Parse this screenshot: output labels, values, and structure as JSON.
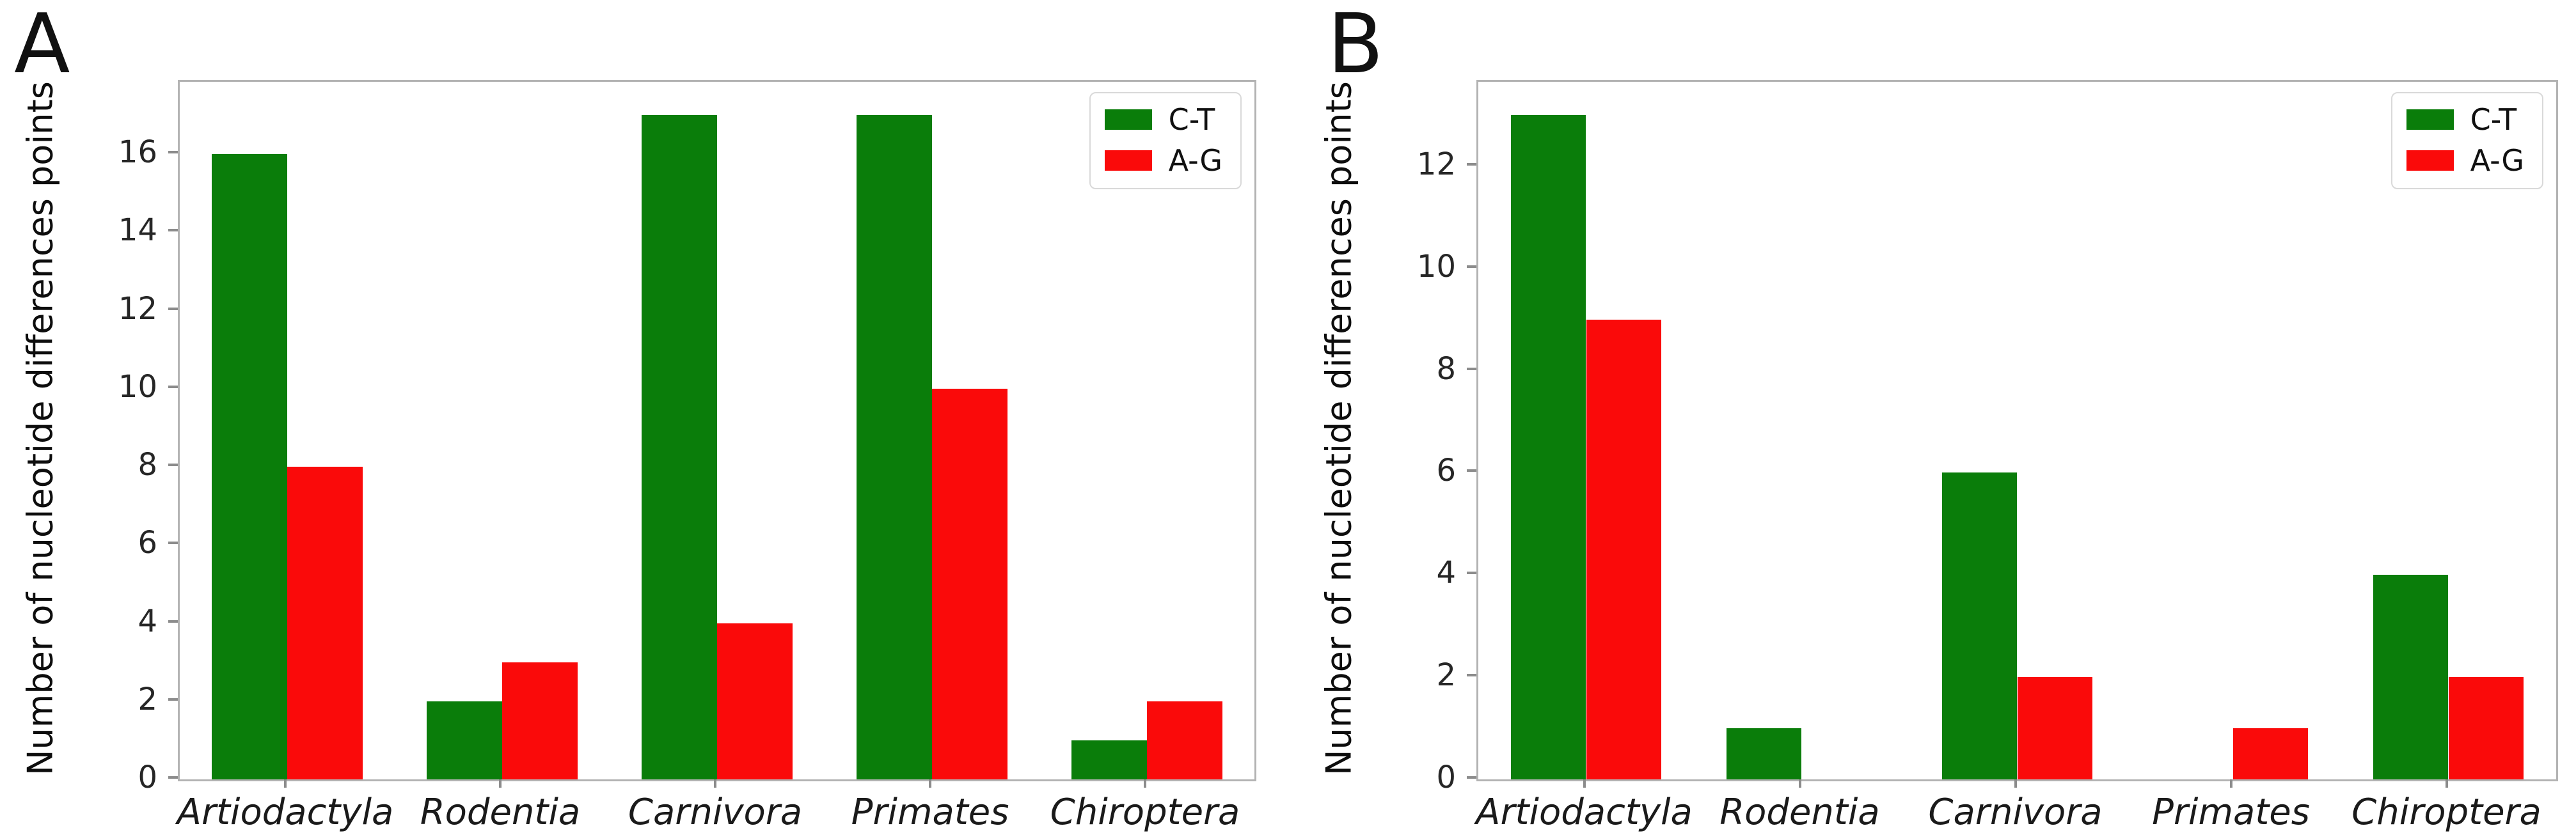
{
  "figure": {
    "background": "#ffffff",
    "accent_green": "#0a7d0a",
    "accent_red": "#fa0a0a"
  },
  "chart_data": [
    {
      "type": "bar",
      "panel_label": "A",
      "title": "",
      "categories": [
        "Artiodactyla",
        "Rodentia",
        "Carnivora",
        "Primates",
        "Chiroptera"
      ],
      "series": [
        {
          "name": "C-T",
          "color": "#0a7d0a",
          "values": [
            16,
            2,
            17,
            17,
            1
          ]
        },
        {
          "name": "A-G",
          "color": "#fa0a0a",
          "values": [
            8,
            3,
            4,
            10,
            2
          ]
        }
      ],
      "xlabel": "",
      "ylabel": "Number of nucleotide differences points",
      "ylim": [
        0,
        17.85
      ],
      "yticks": [
        0,
        2,
        4,
        6,
        8,
        10,
        12,
        14,
        16
      ],
      "grid": false,
      "legend_position": "upper-right"
    },
    {
      "type": "bar",
      "panel_label": "B",
      "title": "",
      "categories": [
        "Artiodactyla",
        "Rodentia",
        "Carnivora",
        "Primates",
        "Chiroptera"
      ],
      "series": [
        {
          "name": "C-T",
          "color": "#0a7d0a",
          "values": [
            13,
            1,
            6,
            0,
            4
          ]
        },
        {
          "name": "A-G",
          "color": "#fa0a0a",
          "values": [
            9,
            0,
            2,
            1,
            2
          ]
        }
      ],
      "xlabel": "",
      "ylabel": "Number of nucleotide differences points",
      "ylim": [
        0,
        13.65
      ],
      "yticks": [
        0,
        2,
        4,
        6,
        8,
        10,
        12
      ],
      "grid": false,
      "legend_position": "upper-right"
    }
  ]
}
